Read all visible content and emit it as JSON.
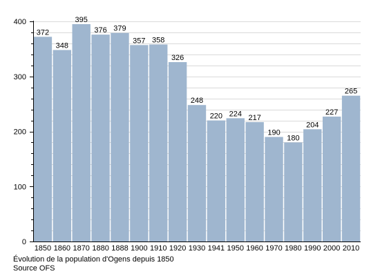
{
  "chart_data": {
    "type": "bar",
    "categories": [
      "1850",
      "1860",
      "1870",
      "1880",
      "1888",
      "1900",
      "1910",
      "1920",
      "1930",
      "1941",
      "1950",
      "1960",
      "1970",
      "1980",
      "1990",
      "2000",
      "2010"
    ],
    "values": [
      372,
      348,
      395,
      376,
      379,
      357,
      358,
      326,
      248,
      220,
      224,
      217,
      190,
      180,
      204,
      227,
      265
    ],
    "ylim": [
      0,
      400
    ],
    "yticks": [
      0,
      100,
      200,
      300,
      400
    ],
    "grid": true,
    "bar_color": "#9fb6cf",
    "grid_color": "#d9d9d9"
  },
  "caption": {
    "line1": "Évolution de la population d'Ogens depuis 1850",
    "line2": "Source OFS"
  }
}
